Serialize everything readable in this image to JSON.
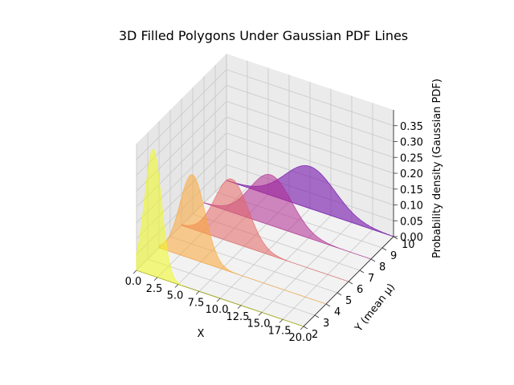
{
  "chart_data": {
    "type": "area",
    "projection": "3d",
    "title": "3D Filled Polygons Under Gaussian PDF Lines",
    "xlabel": "X",
    "ylabel": "Y (mean μ)",
    "zlabel": "Probability density (Gaussian PDF)",
    "xlim": [
      0,
      20
    ],
    "ylim": [
      2,
      10
    ],
    "zlim": [
      0,
      0.4
    ],
    "x_ticks": [
      "0.0",
      "2.5",
      "5.0",
      "7.5",
      "10.0",
      "12.5",
      "15.0",
      "17.5",
      "20.0"
    ],
    "y_ticks": [
      "2",
      "3",
      "4",
      "5",
      "6",
      "7",
      "8",
      "9",
      "10"
    ],
    "z_ticks": [
      "0.00",
      "0.05",
      "0.10",
      "0.15",
      "0.20",
      "0.25",
      "0.30",
      "0.35"
    ],
    "grid": true,
    "series": [
      {
        "y": 2,
        "mu": 2,
        "sigma": 1.0,
        "color": "#f0f921"
      },
      {
        "y": 4,
        "mu": 4,
        "sigma": 1.5,
        "color": "#fca636"
      },
      {
        "y": 6,
        "mu": 6,
        "sigma": 2.0,
        "color": "#e16462"
      },
      {
        "y": 8,
        "mu": 8,
        "sigma": 2.5,
        "color": "#b12a90"
      },
      {
        "y": 10,
        "mu": 10,
        "sigma": 3.0,
        "color": "#6a00a8"
      }
    ]
  }
}
